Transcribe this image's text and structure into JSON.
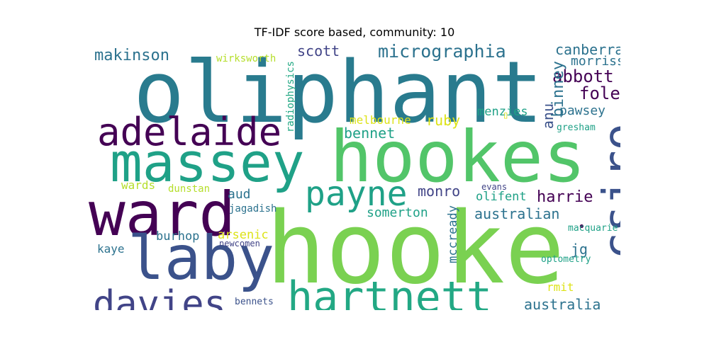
{
  "title": "TF-IDF score based, community: 10",
  "palette": {
    "teal": "#297b8e",
    "green": "#52c569",
    "bright_green": "#7ad151",
    "sea": "#1fa187",
    "purple": "#440154",
    "indigo": "#3b528b",
    "navy": "#414487",
    "blue": "#2c728e",
    "aqua": "#22a884",
    "lime": "#b5de2b",
    "yellow": "#dde318"
  },
  "words": {
    "oliphant": "oliphant",
    "hookes": "hookes",
    "hooke": "hooke",
    "massey": "massey",
    "ward": "ward",
    "laby": "laby",
    "adelaide": "adelaide",
    "csiro": "csiro",
    "hartnett": "hartnett",
    "davies": "davies",
    "payne": "payne",
    "micrographia": "micrographia",
    "makinson": "makinson",
    "scott": "scott",
    "canberra": "canberra",
    "morriss": "morriss",
    "abbott": "abbott",
    "foley": "foley",
    "binney": "binney",
    "anu": "anu",
    "pawsey": "pawsey",
    "gresham": "gresham",
    "wirksworth": "wirksworth",
    "radiophysics": "radiophysics",
    "melbourne": "melbourne",
    "ruby": "ruby",
    "bennet": "bennet",
    "menzies": "menzies",
    "box_glyph": "▯",
    "wards": "wards",
    "dunstan": "dunstan",
    "aud": "aud",
    "monro": "monro",
    "evans": "evans",
    "olifent": "olifent",
    "harrie": "harrie",
    "jagadish": "jagadish",
    "australian": "australian",
    "somerton": "somerton",
    "mccready": "mccready",
    "burhop": "burhop",
    "arsenic": "arsenic",
    "newcomen": "newcomen",
    "kaye": "kaye",
    "jg": "jg",
    "macquarie": "macquarie",
    "optometry": "optometry",
    "rmit": "rmit",
    "australia": "australia",
    "bennets": "bennets",
    "dot": "•"
  }
}
